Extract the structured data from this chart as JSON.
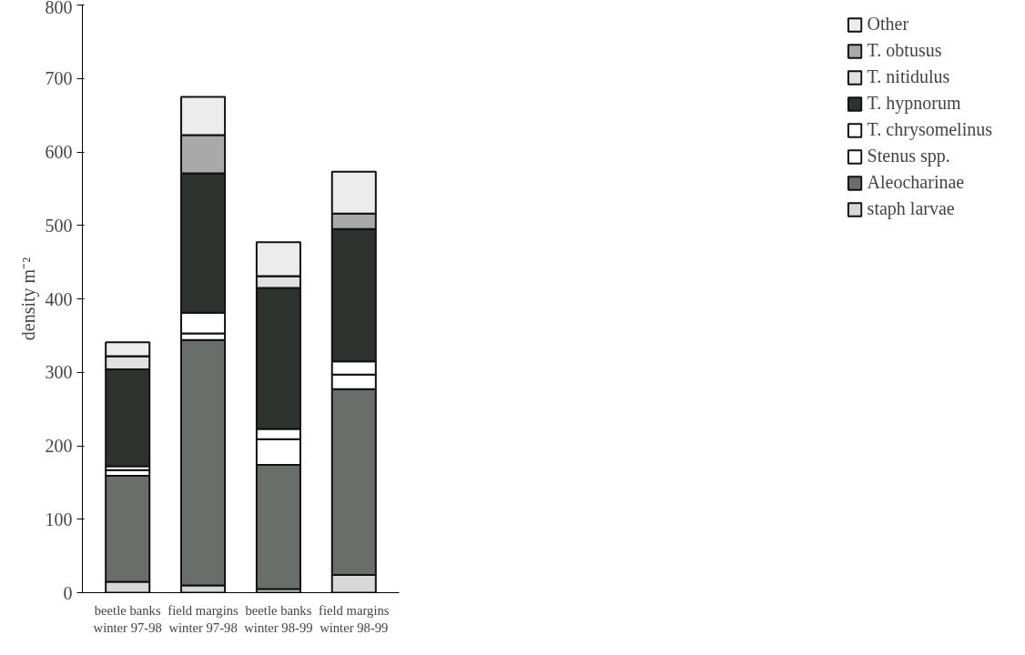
{
  "chart_data": {
    "type": "bar",
    "stacked": true,
    "ylabel": "density m⁻²",
    "categories": [
      "beetle banks\nwinter 97-98",
      "field margins\nwinter 97-98",
      "beetle banks\nwinter 98-99",
      "field margins\nwinter 98-99"
    ],
    "series": [
      {
        "name": "staph larvae",
        "color": "#d8d8d8",
        "values": [
          15,
          10,
          5,
          24
        ]
      },
      {
        "name": "Aleocharinae",
        "color": "#6a6e6a",
        "values": [
          144,
          334,
          169,
          253
        ]
      },
      {
        "name": "Stenus spp.",
        "color": "#ffffff",
        "values": [
          8,
          9,
          35,
          20
        ]
      },
      {
        "name": "T. chrysomelinus",
        "color": "#ffffff",
        "values": [
          5,
          28,
          14,
          18
        ]
      },
      {
        "name": "T. hypnorum",
        "color": "#2e332f",
        "values": [
          132,
          190,
          192,
          180
        ]
      },
      {
        "name": "T. nitidulus",
        "color": "#e0e0e0",
        "values": [
          18,
          0,
          16,
          0
        ]
      },
      {
        "name": "T. obtusus",
        "color": "#a9a9a9",
        "values": [
          0,
          52,
          0,
          21
        ]
      },
      {
        "name": "Other",
        "color": "#ececec",
        "values": [
          19,
          52,
          46,
          57
        ]
      }
    ],
    "ylim": [
      0,
      800
    ],
    "yticks": [
      0,
      100,
      200,
      300,
      400,
      500,
      600,
      700,
      800
    ],
    "grid": false,
    "legend": "right"
  }
}
